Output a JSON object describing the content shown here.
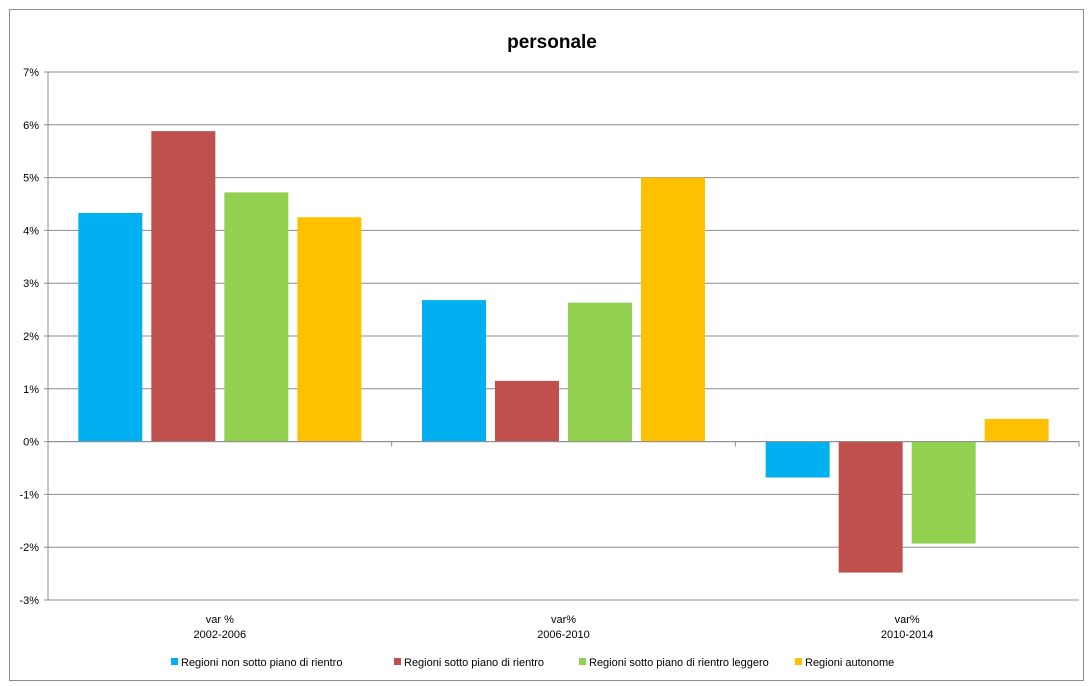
{
  "chart_data": {
    "type": "bar",
    "title": "personale",
    "categories": [
      [
        "var %",
        "2002-2006"
      ],
      [
        "var%",
        "2006-2010"
      ],
      [
        "var%",
        "2010-2014"
      ]
    ],
    "series": [
      {
        "name": "Regioni non sotto piano di rientro",
        "color": "#00b0f0",
        "values": [
          4.33,
          2.68,
          -0.68
        ]
      },
      {
        "name": "Regioni sotto piano di rientro",
        "color": "#c0504d",
        "values": [
          5.88,
          1.15,
          -2.48
        ]
      },
      {
        "name": "Regioni sotto piano di rientro leggero",
        "color": "#92d050",
        "values": [
          4.72,
          2.63,
          -1.93
        ]
      },
      {
        "name": "Regioni autonome",
        "color": "#ffc000",
        "values": [
          4.25,
          5.0,
          0.43
        ]
      }
    ],
    "yticks": [
      "7%",
      "6%",
      "5%",
      "4%",
      "3%",
      "2%",
      "1%",
      "0%",
      "-1%",
      "-2%",
      "-3%"
    ],
    "ylim": [
      -3,
      7
    ],
    "grid": true,
    "legend_position": "bottom"
  }
}
